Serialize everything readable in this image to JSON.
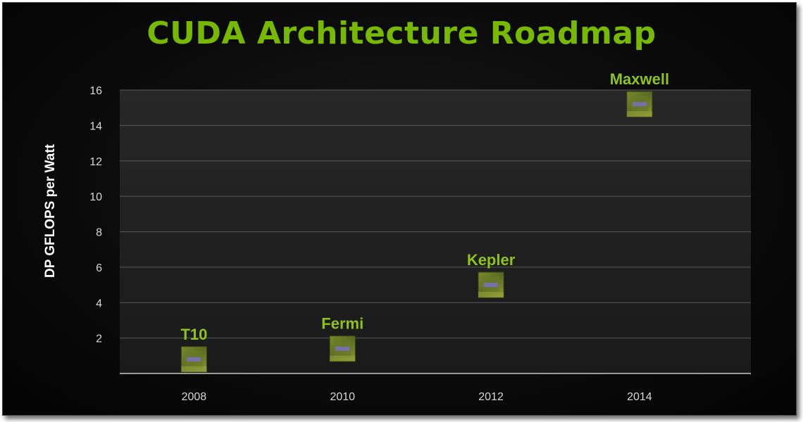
{
  "slide": {
    "title": "CUDA Architecture Roadmap",
    "accent_color": "#76b900",
    "chip_icon": "gpu-die-thumbnail"
  },
  "chart_data": {
    "type": "scatter",
    "title": "CUDA Architecture Roadmap",
    "xlabel": "",
    "ylabel": "DP GFLOPS per Watt",
    "x_tick_labels": [
      "2008",
      "2010",
      "2012",
      "2014"
    ],
    "y_ticks": [
      2,
      4,
      6,
      8,
      10,
      12,
      14,
      16
    ],
    "ylim": [
      0,
      16
    ],
    "xlim": [
      2007,
      2015.5
    ],
    "grid": true,
    "points": [
      {
        "label": "T10",
        "x": 2008,
        "y": 0.8
      },
      {
        "label": "Fermi",
        "x": 2010,
        "y": 1.4
      },
      {
        "label": "Kepler",
        "x": 2012,
        "y": 5.0
      },
      {
        "label": "Maxwell",
        "x": 2014,
        "y": 15.2
      }
    ]
  }
}
